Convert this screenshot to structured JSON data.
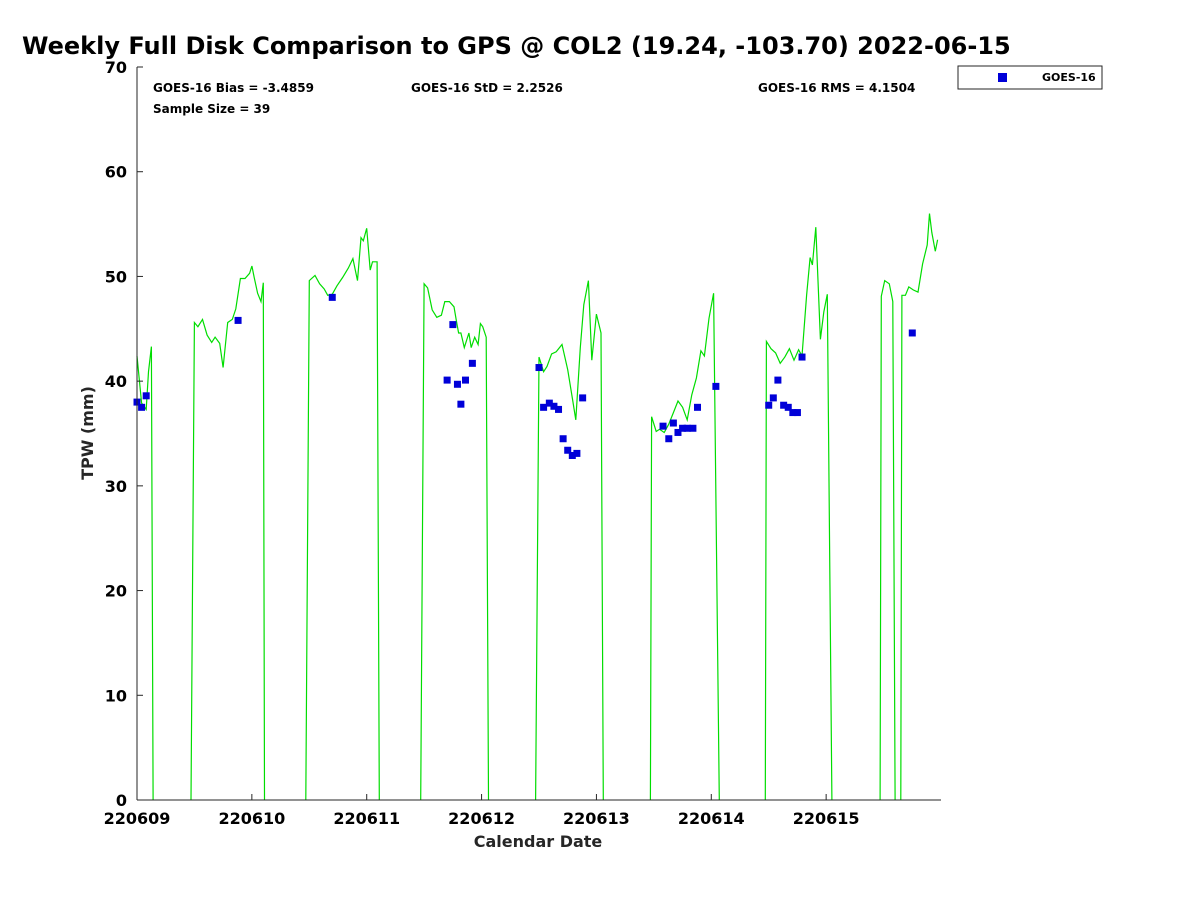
{
  "chart_data": {
    "type": "scatter",
    "title": "Weekly Full Disk Comparison to GPS @ COL2 (19.24, -103.70) 2022-06-15",
    "xlabel": "Calendar Date",
    "ylabel": "TPW (mm)",
    "xlim": [
      220609,
      220616
    ],
    "ylim": [
      0,
      70
    ],
    "x_ticks": [
      "220609",
      "220610",
      "220611",
      "220612",
      "220613",
      "220614",
      "220615"
    ],
    "y_ticks": [
      "0",
      "10",
      "20",
      "30",
      "40",
      "50",
      "60",
      "70"
    ],
    "grid": false,
    "legend_position": "top-right-outside",
    "stats": {
      "bias": "GOES-16 Bias = -3.4859",
      "std": "GOES-16 StD = 2.2526",
      "rms": "GOES-16 RMS = 4.1504",
      "sample": "Sample Size = 39"
    },
    "series": [
      {
        "name": "GOES-16",
        "kind": "scatter",
        "color": "#0000d8",
        "marker": "square",
        "points": [
          [
            220609.0,
            38.0
          ],
          [
            220609.04,
            37.5
          ],
          [
            220609.08,
            38.6
          ],
          [
            220609.88,
            45.8
          ],
          [
            220610.7,
            48.0
          ],
          [
            220611.7,
            40.1
          ],
          [
            220611.75,
            45.4
          ],
          [
            220611.79,
            39.7
          ],
          [
            220611.82,
            37.8
          ],
          [
            220611.86,
            40.1
          ],
          [
            220611.92,
            41.7
          ],
          [
            220612.5,
            41.3
          ],
          [
            220612.54,
            37.5
          ],
          [
            220612.59,
            37.9
          ],
          [
            220612.63,
            37.6
          ],
          [
            220612.67,
            37.3
          ],
          [
            220612.71,
            34.5
          ],
          [
            220612.75,
            33.4
          ],
          [
            220612.79,
            32.9
          ],
          [
            220612.83,
            33.1
          ],
          [
            220612.88,
            38.4
          ],
          [
            220613.58,
            35.7
          ],
          [
            220613.63,
            34.5
          ],
          [
            220613.67,
            36.0
          ],
          [
            220613.71,
            35.1
          ],
          [
            220613.75,
            35.5
          ],
          [
            220613.79,
            35.5
          ],
          [
            220613.84,
            35.5
          ],
          [
            220613.88,
            37.5
          ],
          [
            220614.04,
            39.5
          ],
          [
            220614.5,
            37.7
          ],
          [
            220614.54,
            38.4
          ],
          [
            220614.58,
            40.1
          ],
          [
            220614.63,
            37.7
          ],
          [
            220614.67,
            37.5
          ],
          [
            220614.71,
            37.0
          ],
          [
            220614.75,
            37.0
          ],
          [
            220614.79,
            42.3
          ],
          [
            220615.75,
            44.6
          ]
        ]
      },
      {
        "kind": "line",
        "color": "#00dd00",
        "segments": [
          [
            [
              220609.0,
              42.4
            ],
            [
              220609.04,
              37.9
            ],
            [
              220609.08,
              37.3
            ],
            [
              220609.1,
              40.9
            ],
            [
              220609.125,
              43.3
            ],
            [
              220609.14,
              0
            ]
          ],
          [
            [
              220609.47,
              0
            ],
            [
              220609.5,
              45.6
            ],
            [
              220609.53,
              45.2
            ],
            [
              220609.57,
              45.9
            ],
            [
              220609.61,
              44.4
            ],
            [
              220609.65,
              43.7
            ],
            [
              220609.68,
              44.2
            ],
            [
              220609.72,
              43.6
            ],
            [
              220609.75,
              41.3
            ],
            [
              220609.79,
              45.6
            ],
            [
              220609.83,
              45.9
            ],
            [
              220609.86,
              46.9
            ],
            [
              220609.9,
              49.8
            ],
            [
              220609.94,
              49.8
            ],
            [
              220609.98,
              50.3
            ],
            [
              220610.0,
              51.0
            ],
            [
              220610.02,
              49.9
            ],
            [
              220610.05,
              48.4
            ],
            [
              220610.08,
              47.6
            ],
            [
              220610.1,
              49.4
            ],
            [
              220610.11,
              0
            ]
          ],
          [
            [
              220610.47,
              0
            ],
            [
              220610.5,
              49.6
            ],
            [
              220610.55,
              50.1
            ],
            [
              220610.59,
              49.3
            ],
            [
              220610.63,
              48.8
            ],
            [
              220610.66,
              48.2
            ],
            [
              220610.7,
              48.3
            ],
            [
              220610.74,
              49.1
            ],
            [
              220610.79,
              49.9
            ],
            [
              220610.84,
              50.8
            ],
            [
              220610.88,
              51.7
            ],
            [
              220610.92,
              49.6
            ],
            [
              220610.95,
              53.7
            ],
            [
              220610.97,
              53.4
            ],
            [
              220611.0,
              54.6
            ],
            [
              220611.03,
              50.6
            ],
            [
              220611.05,
              51.4
            ],
            [
              220611.09,
              51.4
            ],
            [
              220611.11,
              0
            ]
          ],
          [
            [
              220611.47,
              0
            ],
            [
              220611.5,
              49.3
            ],
            [
              220611.53,
              48.9
            ],
            [
              220611.57,
              46.8
            ],
            [
              220611.61,
              46.1
            ],
            [
              220611.65,
              46.3
            ],
            [
              220611.68,
              47.6
            ],
            [
              220611.72,
              47.6
            ],
            [
              220611.76,
              47.1
            ],
            [
              220611.78,
              45.8
            ],
            [
              220611.8,
              44.6
            ],
            [
              220611.82,
              44.6
            ],
            [
              220611.85,
              43.2
            ],
            [
              220611.89,
              44.6
            ],
            [
              220611.91,
              43.2
            ],
            [
              220611.94,
              44.2
            ],
            [
              220611.97,
              43.5
            ],
            [
              220611.99,
              45.5
            ],
            [
              220612.01,
              45.2
            ],
            [
              220612.04,
              44.2
            ],
            [
              220612.06,
              0
            ]
          ],
          [
            [
              220612.47,
              0
            ],
            [
              220612.5,
              42.3
            ],
            [
              220612.54,
              40.9
            ],
            [
              220612.57,
              41.4
            ],
            [
              220612.61,
              42.6
            ],
            [
              220612.65,
              42.8
            ],
            [
              220612.7,
              43.5
            ],
            [
              220612.75,
              41.1
            ],
            [
              220612.79,
              38.4
            ],
            [
              220612.82,
              36.3
            ],
            [
              220612.86,
              43.2
            ],
            [
              220612.89,
              47.3
            ],
            [
              220612.93,
              49.6
            ],
            [
              220612.96,
              42.0
            ],
            [
              220613.0,
              46.4
            ],
            [
              220613.04,
              44.6
            ],
            [
              220613.06,
              0
            ]
          ],
          [
            [
              220613.47,
              0
            ],
            [
              220613.48,
              36.6
            ],
            [
              220613.52,
              35.2
            ],
            [
              220613.55,
              35.4
            ],
            [
              220613.59,
              35.1
            ],
            [
              220613.63,
              35.9
            ],
            [
              220613.67,
              37.0
            ],
            [
              220613.71,
              38.1
            ],
            [
              220613.75,
              37.5
            ],
            [
              220613.79,
              36.3
            ],
            [
              220613.83,
              38.7
            ],
            [
              220613.87,
              40.3
            ],
            [
              220613.91,
              42.9
            ],
            [
              220613.94,
              42.4
            ],
            [
              220613.98,
              46.0
            ],
            [
              220614.02,
              48.4
            ],
            [
              220614.07,
              0
            ]
          ],
          [
            [
              220614.47,
              0
            ],
            [
              220614.48,
              43.8
            ],
            [
              220614.52,
              43.1
            ],
            [
              220614.56,
              42.7
            ],
            [
              220614.6,
              41.7
            ],
            [
              220614.64,
              42.3
            ],
            [
              220614.68,
              43.1
            ],
            [
              220614.72,
              42.0
            ],
            [
              220614.76,
              43.0
            ],
            [
              220614.79,
              42.4
            ],
            [
              220614.83,
              48.2
            ],
            [
              220614.86,
              51.8
            ],
            [
              220614.88,
              51.1
            ],
            [
              220614.91,
              54.7
            ],
            [
              220614.95,
              44.0
            ],
            [
              220614.98,
              46.6
            ],
            [
              220615.01,
              48.3
            ],
            [
              220615.05,
              0
            ]
          ],
          [
            [
              220615.47,
              0
            ],
            [
              220615.48,
              48.1
            ],
            [
              220615.51,
              49.6
            ],
            [
              220615.55,
              49.3
            ],
            [
              220615.58,
              47.6
            ],
            [
              220615.6,
              0
            ]
          ],
          [
            [
              220615.65,
              0
            ],
            [
              220615.66,
              48.2
            ],
            [
              220615.69,
              48.2
            ],
            [
              220615.72,
              49.0
            ],
            [
              220615.76,
              48.7
            ],
            [
              220615.8,
              48.5
            ],
            [
              220615.84,
              51.2
            ],
            [
              220615.88,
              53.0
            ],
            [
              220615.9,
              56.0
            ],
            [
              220615.92,
              54.2
            ],
            [
              220615.95,
              52.4
            ],
            [
              220615.97,
              53.5
            ]
          ]
        ]
      }
    ]
  }
}
